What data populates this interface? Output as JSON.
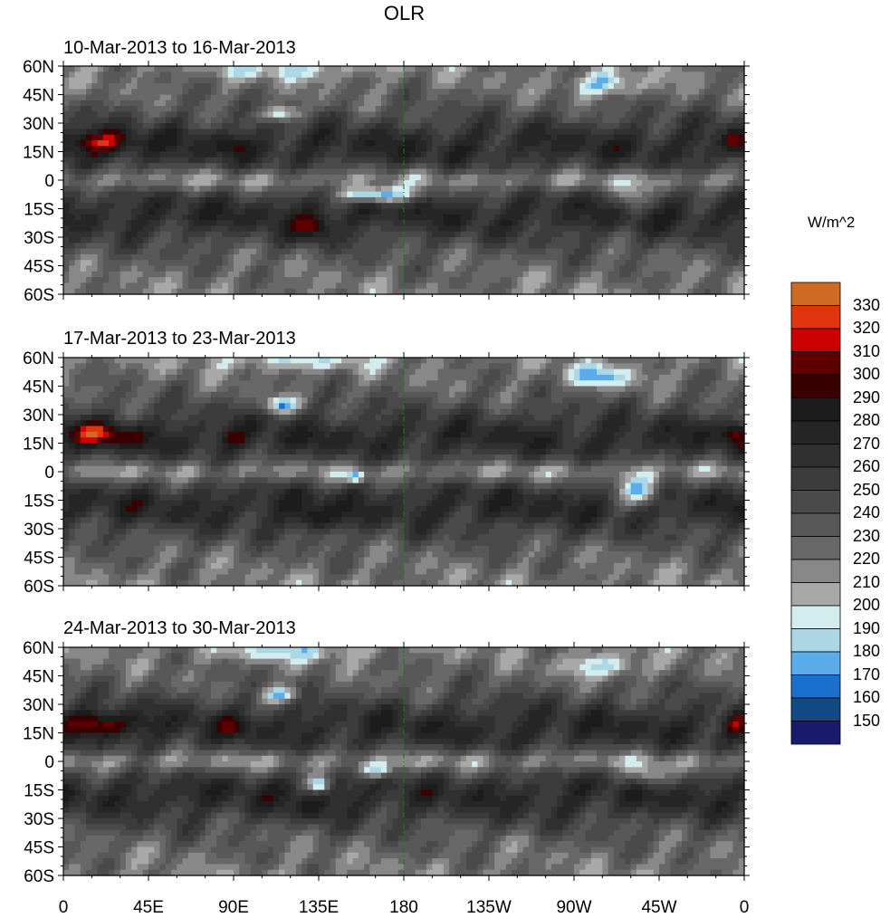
{
  "title": "OLR",
  "units": "W/m^2",
  "chart_data": {
    "type": "heatmap",
    "title": "OLR",
    "panels": [
      {
        "title": "10-Mar-2013 to 16-Mar-2013"
      },
      {
        "title": "17-Mar-2013 to 23-Mar-2013"
      },
      {
        "title": "24-Mar-2013 to 30-Mar-2013"
      }
    ],
    "y_ticks": [
      "60N",
      "45N",
      "30N",
      "15N",
      "0",
      "15S",
      "30S",
      "45S",
      "60S"
    ],
    "y_values": [
      60,
      45,
      30,
      15,
      0,
      -15,
      -30,
      -45,
      -60
    ],
    "x_ticks": [
      "0",
      "45E",
      "90E",
      "135E",
      "180",
      "135W",
      "90W",
      "45W",
      "0"
    ],
    "x_values": [
      0,
      45,
      90,
      135,
      180,
      225,
      270,
      315,
      360
    ],
    "colorbar": {
      "levels": [
        "330",
        "320",
        "310",
        "300",
        "290",
        "280",
        "270",
        "260",
        "250",
        "240",
        "230",
        "220",
        "210",
        "200",
        "190",
        "180",
        "170",
        "160",
        "150"
      ],
      "colors": [
        "#cf6a22",
        "#e0360f",
        "#cc0000",
        "#5e0000",
        "#3a0000",
        "#1c1c1c",
        "#262626",
        "#303030",
        "#3c3c3c",
        "#4a4a4a",
        "#585858",
        "#686868",
        "#888888",
        "#a8a8a8",
        "#d3ecee",
        "#acd8e6",
        "#5aacea",
        "#1a70cc",
        "#134a86",
        "#1a1a6e"
      ]
    }
  }
}
